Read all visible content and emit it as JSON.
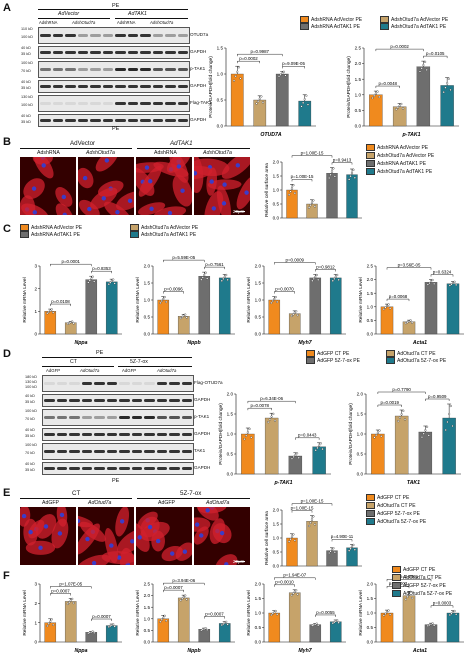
{
  "colors": {
    "orange": "#F08A1E",
    "tan": "#C6A36A",
    "gray": "#6E6E6E",
    "teal": "#1F7A8C",
    "red_stain": "#D2202E",
    "blue_stain": "#3C3CC8"
  },
  "panelA": {
    "letter": "A",
    "header_pe": "PE",
    "header_vec": "AdVector",
    "header_tak": "AdTAK1",
    "lanes": [
      "AdshRNA",
      "AdshOtud7a",
      "AdshRNA",
      "AdshOtud7a"
    ],
    "blots": [
      {
        "label": "OTUD7a",
        "kd": [
          "110 kD",
          "100 kD"
        ]
      },
      {
        "label": "GAPDH",
        "kd": [
          "40 kD",
          "35 kD"
        ]
      },
      {
        "label": "p-TAK1",
        "kd": [
          "100 kD",
          "70 kD"
        ]
      },
      {
        "label": "GAPDH",
        "kd": [
          "40 kD",
          "35 kD"
        ]
      },
      {
        "label": "Flag-TAK1",
        "kd": [
          "130 kD",
          "100 kD"
        ]
      },
      {
        "label": "GAPDH",
        "kd": [
          "40 kD",
          "35 kD"
        ]
      }
    ],
    "footer_pe": "PE",
    "legend": [
      "AdshRNA AdVector PE",
      "AdshOtud7a AdVector PE",
      "AdshRNA AdTAK1 PE",
      "AdshOtud7a AdTAK1 PE"
    ]
  },
  "panelB": {
    "letter": "B",
    "header_vec": "AdVector",
    "header_tak": "AdTAK1",
    "lanes": [
      "AdshRNA",
      "AdshOtud7a",
      "AdshRNA",
      "AdshOtud7a"
    ],
    "scale": "20μm",
    "legend": [
      "AdshRNA AdVector PE",
      "AdshOtud7a AdVector PE",
      "AdshRNA AdTAK1 PE",
      "AdshOtud7a AdTAK1 PE"
    ]
  },
  "panelC": {
    "letter": "C",
    "legend": [
      "AdshRNA AdVector PE",
      "AdshOtud7a AdVector PE",
      "AdshRNA AdTAK1 PE",
      "AdshOtud7a  AdTAK1 PE"
    ]
  },
  "panelD": {
    "letter": "D",
    "header_pe": "PE",
    "header_ct": "CT",
    "header_sz": "5Z-7-ox",
    "lanes": [
      "AdGFP",
      "AdOtud7a",
      "AdGFP",
      "AdOtud7a"
    ],
    "blots": [
      {
        "label": "Flag-OTUD7a",
        "kd": [
          "180 kD",
          "130 kD",
          "100 kD"
        ]
      },
      {
        "label": "GAPDH",
        "kd": [
          "40 kD",
          "35 kD"
        ]
      },
      {
        "label": "p-TAK1",
        "kd": [
          "100 kD",
          "70 kD"
        ]
      },
      {
        "label": "GAPDH",
        "kd": [
          "40 kD",
          "35 kD"
        ]
      },
      {
        "label": "TAK1",
        "kd": [
          "100 kD",
          "70 kD"
        ]
      },
      {
        "label": "GAPDH",
        "kd": [
          "40 kD",
          "35 kD"
        ]
      }
    ],
    "footer_pe": "PE",
    "legend": [
      "AdGFP CT PE",
      "AdOtud7a CT PE",
      "AdGFP 5Z-7-ox PE",
      "AdOtud7a 5Z-7-ox PE"
    ]
  },
  "panelE": {
    "letter": "E",
    "header_ct": "CT",
    "header_sz": "5Z-7-ox",
    "lanes": [
      "AdGFP",
      "AdOtud7a",
      "AdGFP",
      "AdOtud7a"
    ],
    "scale": "20μm",
    "legend": [
      "AdGFP CT PE",
      "AdOtud7a CT PE",
      "AdGFP 5Z-7-ox PE",
      "AdOtud7a 5Z-7-ox PE"
    ]
  },
  "panelF": {
    "letter": "F",
    "legend": [
      "AdGFP CT PE",
      "AdOtud7a CT PE",
      "AdGFP 5Z-7-ox PE",
      "AdOtud7a  5Z-7-ox PE"
    ]
  },
  "chart_data": [
    {
      "id": "A1",
      "type": "bar",
      "ylabel": "Protein/GAPDH(fold change)",
      "xlabel": "OTUD7A",
      "ylim": [
        0,
        1.5
      ],
      "yticks": [
        "0.0",
        "0.5",
        "1.0",
        "1.5"
      ],
      "values": [
        1.0,
        0.5,
        1.0,
        0.48
      ],
      "errors": [
        0.15,
        0.08,
        0.05,
        0.12
      ],
      "pvalues": [
        "p=0.0002",
        "p=0.9987",
        "p=9.09E-05"
      ]
    },
    {
      "id": "A2",
      "type": "bar",
      "ylabel": "Protein/GAPDH(fold change)",
      "xlabel": "p-TAK1",
      "ylim": [
        0,
        2.5
      ],
      "yticks": [
        "0.0",
        "0.5",
        "1.0",
        "1.5",
        "2.0",
        "2.5"
      ],
      "values": [
        1.0,
        0.62,
        1.9,
        1.3
      ],
      "errors": [
        0.12,
        0.1,
        0.18,
        0.25
      ],
      "pvalues": [
        "p=0.0048",
        "p=0.0002",
        "p=0.0105"
      ]
    },
    {
      "id": "B1",
      "type": "bar",
      "ylabel": "Relative cell surface area",
      "xlabel": "",
      "ylim": [
        0,
        2.0
      ],
      "yticks": [
        "0.0",
        "0.5",
        "1.0",
        "1.5",
        "2.0"
      ],
      "values": [
        1.0,
        0.5,
        1.6,
        1.55
      ],
      "errors": [
        0.2,
        0.15,
        0.2,
        0.2
      ],
      "pvalues": [
        "p=1.00E-15",
        "p=1.00E-15",
        "p=0.9413"
      ]
    },
    {
      "id": "C1",
      "type": "bar",
      "ylabel": "Relative mRNA Level",
      "xlabel": "Nppa",
      "ylim": [
        0,
        3
      ],
      "yticks": [
        "0",
        "1",
        "2",
        "3"
      ],
      "values": [
        1.0,
        0.5,
        2.4,
        2.3
      ],
      "errors": [
        0.1,
        0.06,
        0.15,
        0.12
      ],
      "pvalues": [
        "p=0.0108",
        "p=0.0001",
        "p=0.8353"
      ]
    },
    {
      "id": "C2",
      "type": "bar",
      "ylabel": "Relative mRNA Level",
      "xlabel": "Nppb",
      "ylim": [
        0,
        2.0
      ],
      "yticks": [
        "0.0",
        "0.5",
        "1.0",
        "1.5",
        "2.0"
      ],
      "values": [
        1.0,
        0.52,
        1.7,
        1.65
      ],
      "errors": [
        0.1,
        0.06,
        0.12,
        0.1
      ],
      "pvalues": [
        "p=0.0096",
        "p=5.59E-05",
        "p=0.7561"
      ]
    },
    {
      "id": "C3",
      "type": "bar",
      "ylabel": "Relative mRNA Level",
      "xlabel": "Myh7",
      "ylim": [
        0,
        2.0
      ],
      "yticks": [
        "0.0",
        "0.5",
        "1.0",
        "1.5",
        "2.0"
      ],
      "values": [
        1.0,
        0.6,
        1.65,
        1.65
      ],
      "errors": [
        0.1,
        0.08,
        0.1,
        0.1
      ],
      "pvalues": [
        "p=0.0070",
        "p=0.0009",
        "p=0.9812"
      ]
    },
    {
      "id": "C4",
      "type": "bar",
      "ylabel": "Relative mRNA Level",
      "xlabel": "Acta1",
      "ylim": [
        0,
        2.5
      ],
      "yticks": [
        "0.0",
        "0.5",
        "1.0",
        "1.5",
        "2.0",
        "2.5"
      ],
      "values": [
        1.0,
        0.45,
        1.9,
        1.85
      ],
      "errors": [
        0.1,
        0.06,
        0.1,
        0.08
      ],
      "pvalues": [
        "p=0.0068",
        "p=3.56E-05",
        "p=0.6324"
      ]
    },
    {
      "id": "D1",
      "type": "bar",
      "ylabel": "Protein/GAPDH(fold change)",
      "xlabel": "p-TAK1",
      "ylim": [
        0,
        2.0
      ],
      "yticks": [
        "0.0",
        "0.5",
        "1.0",
        "1.5",
        "2.0"
      ],
      "values": [
        1.0,
        1.4,
        0.45,
        0.68
      ],
      "errors": [
        0.15,
        0.12,
        0.08,
        0.1
      ],
      "pvalues": [
        "p=0.0078",
        "p=6.34E-06",
        "p=0.0443"
      ]
    },
    {
      "id": "D2",
      "type": "bar",
      "ylabel": "Protein/GAPDH(fold change)",
      "xlabel": "TAK1",
      "ylim": [
        0,
        2.0
      ],
      "yticks": [
        "0.0",
        "0.5",
        "1.0",
        "1.5",
        "2.0"
      ],
      "values": [
        1.0,
        1.45,
        1.05,
        1.4
      ],
      "errors": [
        0.1,
        0.15,
        0.15,
        0.35
      ],
      "pvalues": [
        "p=0.0019",
        "p=0.7790",
        "p=0.9509"
      ]
    },
    {
      "id": "E1",
      "type": "bar",
      "ylabel": "Relative cell surface area",
      "xlabel": "",
      "ylim": [
        0,
        2.0
      ],
      "yticks": [
        "0.0",
        "0.5",
        "1.0",
        "1.5",
        "2.0"
      ],
      "values": [
        1.0,
        1.6,
        0.55,
        0.65
      ],
      "errors": [
        0.15,
        0.2,
        0.1,
        0.12
      ],
      "pvalues": [
        "p=1.00E-15",
        "p=1.00E-15",
        "p=4.90E-11"
      ]
    },
    {
      "id": "F1",
      "type": "bar",
      "ylabel": "Relative mRNA Level",
      "xlabel": "Nppa",
      "ylim": [
        0,
        3
      ],
      "yticks": [
        "0",
        "1",
        "2",
        "3"
      ],
      "values": [
        1.0,
        2.1,
        0.5,
        0.85
      ],
      "errors": [
        0.2,
        0.15,
        0.05,
        0.08
      ],
      "pvalues": [
        "p=0.0007",
        "p=1.07E-05",
        "p=0.0007"
      ]
    },
    {
      "id": "F2",
      "type": "bar",
      "ylabel": "Relative mRNA Level",
      "xlabel": "Nppb",
      "ylim": [
        0,
        2.5
      ],
      "yticks": [
        "0.0",
        "0.5",
        "1.0",
        "1.5",
        "2.0",
        "2.5"
      ],
      "values": [
        1.0,
        1.9,
        0.55,
        0.8
      ],
      "errors": [
        0.15,
        0.12,
        0.05,
        0.08
      ],
      "pvalues": [
        "p=0.0007",
        "p=3.94E-06",
        "p=0.0007"
      ]
    },
    {
      "id": "F3",
      "type": "bar",
      "ylabel": "Relative mRNA Level",
      "xlabel": "Myh7",
      "ylim": [
        0,
        2.0
      ],
      "yticks": [
        "0.0",
        "0.5",
        "1.0",
        "1.5",
        "2.0"
      ],
      "values": [
        1.0,
        1.7,
        0.6,
        0.7
      ],
      "errors": [
        0.08,
        0.1,
        0.04,
        0.06
      ],
      "pvalues": [
        "p=0.0010",
        "p=1.94E-07",
        "p=0.0055"
      ]
    },
    {
      "id": "F4",
      "type": "bar",
      "ylabel": "Relative mRNA Level",
      "xlabel": "Acta1",
      "ylim": [
        0,
        2.0
      ],
      "yticks": [
        "0.0",
        "0.5",
        "1.0",
        "1.5",
        "2.0"
      ],
      "values": [
        1.0,
        1.6,
        0.6,
        1.0
      ],
      "errors": [
        0.1,
        0.15,
        0.05,
        0.08
      ],
      "pvalues": [
        "p=0.0003",
        "p=0.0001",
        "p=0.0003"
      ]
    }
  ]
}
